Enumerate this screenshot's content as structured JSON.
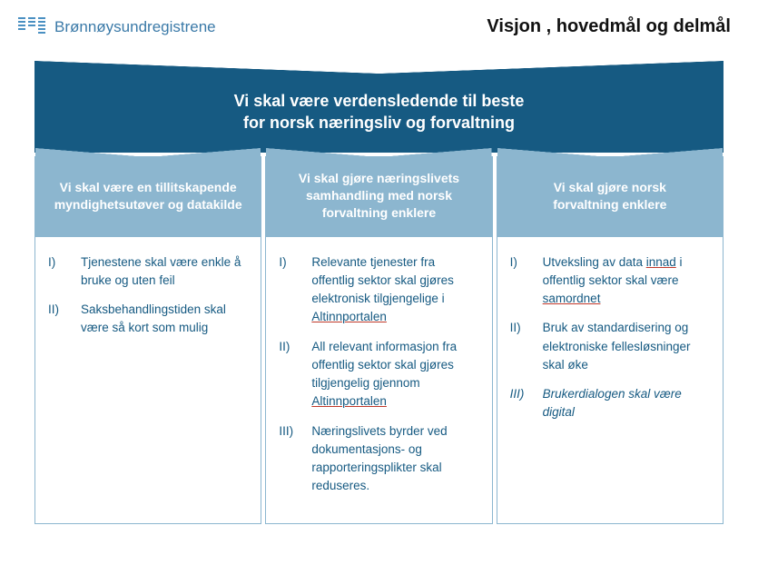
{
  "header": {
    "brand_name": "Brønnøysundregistrene",
    "page_title": "Visjon , hovedmål og delmål"
  },
  "colors": {
    "brand_blue": "#3b7aa8",
    "banner_bg": "#165a82",
    "col_head_bg": "#8cb6cf",
    "body_text": "#165a82",
    "underline": "#c0392b"
  },
  "vision": {
    "line1": "Vi skal være verdensledende til beste",
    "line2": "for norsk næringsliv og forvaltning"
  },
  "columns": [
    {
      "heading_line1": "Vi skal være en tillitskapende",
      "heading_line2": "myndighetsutøver og datakilde",
      "items": [
        {
          "num": "I)",
          "text": "Tjenestene skal være enkle å bruke og uten feil"
        },
        {
          "num": "II)",
          "text": "Saksbehandlingstiden skal være så kort som mulig"
        }
      ]
    },
    {
      "heading_line1": "Vi skal gjøre næringslivets",
      "heading_line2": "samhandling med norsk",
      "heading_line3": "forvaltning enklere",
      "items": [
        {
          "num": "I)",
          "pre": "Relevante tjenester fra offentlig sektor skal gjøres elektronisk tilgjengelige i ",
          "u": "Altinnportalen"
        },
        {
          "num": "II)",
          "pre": "All relevant informasjon fra offentlig sektor skal gjøres tilgjengelig gjennom ",
          "u": "Altinnportalen"
        },
        {
          "num": "III)",
          "text": "Næringslivets byrder ved dokumentasjons- og rapporteringsplikter skal reduseres."
        }
      ]
    },
    {
      "heading_line1": "Vi skal gjøre norsk",
      "heading_line2": "forvaltning enklere",
      "items": [
        {
          "num": "I)",
          "pre": "Utveksling av data ",
          "u": "innad",
          "mid": " i offentlig sektor skal være ",
          "u2": "samordnet"
        },
        {
          "num": "II)",
          "text": "Bruk av standardisering og elektroniske fellesløsninger skal øke"
        },
        {
          "num": "III)",
          "italic": true,
          "text": "Brukerdialogen skal være digital"
        }
      ]
    }
  ]
}
